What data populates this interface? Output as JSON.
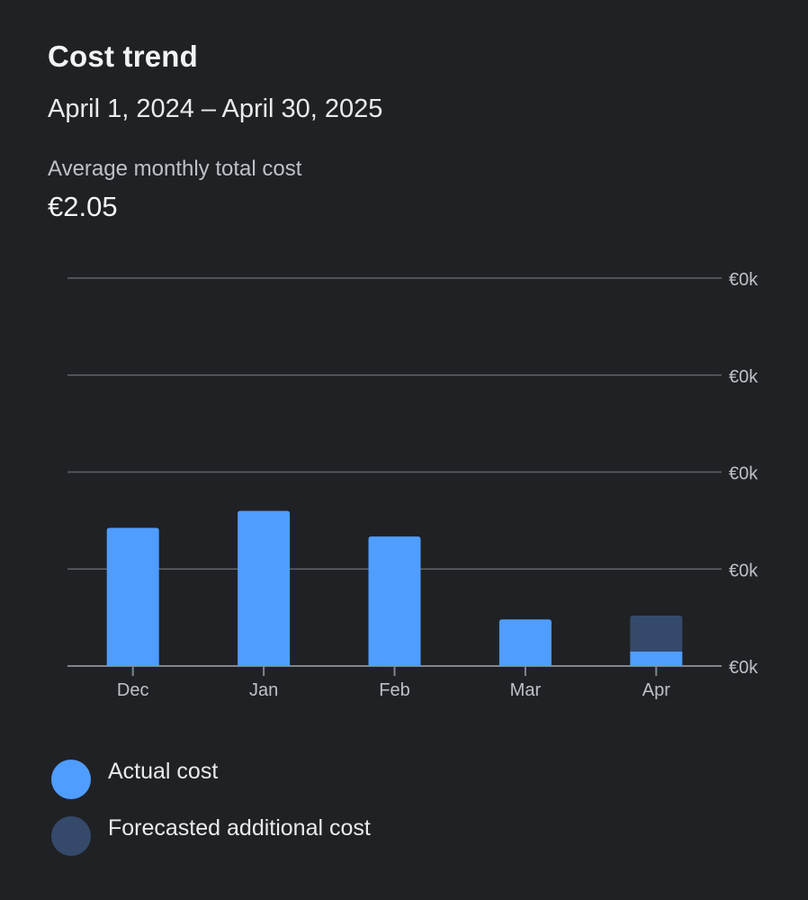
{
  "header": {
    "title": "Cost trend",
    "date_range": "April 1, 2024 – April 30, 2025",
    "avg_label": "Average monthly total cost",
    "avg_value": "€2.05"
  },
  "colors": {
    "actual": "#4f9dff",
    "forecast": "#35496a",
    "grid": "#5f6368",
    "axis_text": "#bdc1c6"
  },
  "chart_data": {
    "type": "bar",
    "stacked": true,
    "categories": [
      "Dec",
      "Jan",
      "Feb",
      "Mar",
      "Apr"
    ],
    "series": [
      {
        "name": "Actual cost",
        "values": [
          2.85,
          3.2,
          2.67,
          0.96,
          0.3
        ]
      },
      {
        "name": "Forecasted additional cost",
        "values": [
          0,
          0,
          0,
          0,
          0.74
        ]
      }
    ],
    "y_tick_labels": [
      "€0k",
      "€0k",
      "€0k",
      "€0k",
      "€0k"
    ],
    "y_tick_values": [
      0,
      2,
      4,
      6,
      8
    ],
    "ylim": [
      0,
      8
    ],
    "grid": true,
    "y_axis_position": "right",
    "legend_position": "bottom-left"
  },
  "legend": {
    "items": [
      {
        "label": "Actual cost"
      },
      {
        "label": "Forecasted additional cost"
      }
    ]
  }
}
